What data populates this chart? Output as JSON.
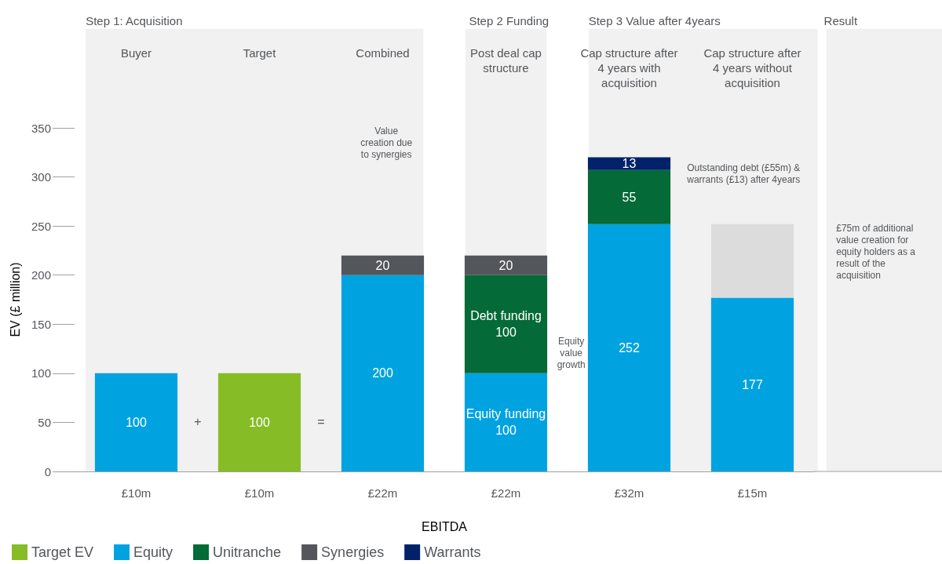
{
  "chart_data": {
    "type": "bar",
    "stacked": true,
    "xlabel": "EBITDA",
    "ylabel": "EV (£ million)",
    "categories": [
      "£10m",
      "£10m",
      "£22m",
      "£22m",
      "£32m",
      "£15m"
    ],
    "ylim": [
      0,
      350
    ],
    "yticks": [
      0,
      50,
      100,
      150,
      200,
      250,
      300,
      350
    ],
    "grid": false,
    "legend": "bottom left",
    "series": [
      {
        "name": "Target EV",
        "color": "#86bc25",
        "values": [
          null,
          100,
          null,
          null,
          null,
          null
        ],
        "value_labels": [
          null,
          "100",
          null,
          null,
          null,
          null
        ]
      },
      {
        "name": "Equity",
        "color": "#00a3e0",
        "values": [
          100,
          null,
          200,
          100,
          252,
          177
        ],
        "value_labels": [
          "100",
          null,
          "200",
          "Equity funding\n100",
          "252",
          "177"
        ]
      },
      {
        "name": "Unitranche",
        "color": "#046a38",
        "values": [
          null,
          null,
          null,
          100,
          55,
          null
        ],
        "value_labels": [
          null,
          null,
          null,
          "Debt funding\n100",
          "55",
          null
        ]
      },
      {
        "name": "Synergies",
        "color": "#53565a",
        "values": [
          null,
          null,
          20,
          20,
          null,
          null
        ],
        "value_labels": [
          null,
          null,
          "20",
          "20",
          null,
          null
        ]
      },
      {
        "name": "Warrants",
        "color": "#012169",
        "values": [
          null,
          null,
          null,
          null,
          13,
          null
        ],
        "value_labels": [
          null,
          null,
          null,
          null,
          "13",
          null
        ]
      },
      {
        "color": "#dcdcdc",
        "values": [
          null,
          null,
          null,
          null,
          null,
          75
        ]
      }
    ],
    "annotations": [
      "Step 1: Acquisition",
      "Step 2 Funding",
      "Step 3 Value after 4years",
      "Result",
      "Buyer",
      "Target",
      "Combined",
      "Post deal cap structure",
      "Cap structure after 4 years with acquisition",
      "Cap structure after 4 years without acquisition",
      "+",
      "=",
      "Value creation due to synergies",
      "Equity value growth",
      "Outstanding debt (£55m) & warrants (£13) after 4years",
      "£75m of additional value creation for equity holders as a result of the acquisition"
    ]
  }
}
